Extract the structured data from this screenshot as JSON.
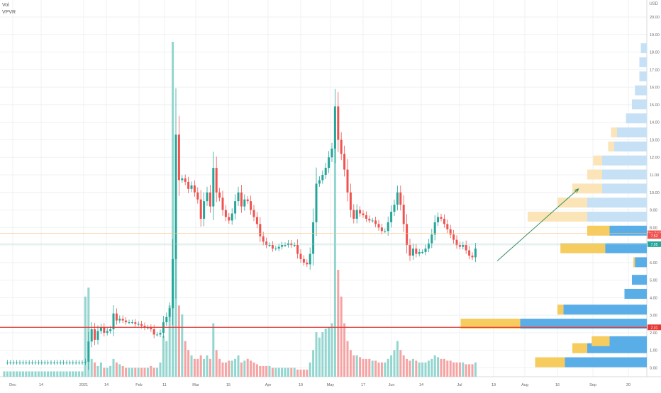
{
  "legend": {
    "line1": "Vol",
    "line2": "VPVR"
  },
  "currency": "USD",
  "chart_data": {
    "type": "candlestick",
    "ylim": [
      -0.5,
      20.9
    ],
    "y_ticks": [
      "0.00",
      "1.00",
      "2.00",
      "3.00",
      "4.00",
      "5.00",
      "6.00",
      "7.00",
      "8.00",
      "9.00",
      "10.00",
      "11.00",
      "12.00",
      "13.00",
      "14.00",
      "15.00",
      "16.00",
      "17.00",
      "18.00",
      "19.00",
      "20.00"
    ],
    "x_ticks": [
      "Dec",
      "14",
      "2021",
      "14",
      "Feb",
      "11",
      "Mar",
      "15",
      "Apr",
      "19",
      "May",
      "17",
      "Jun",
      "14",
      "Jul",
      "19",
      "Aug",
      "16",
      "Sep",
      "20"
    ],
    "price_labels": [
      {
        "text": "Pre 7.67",
        "value": 7.67,
        "color": "#ef5350"
      },
      {
        "text": "7.52",
        "value": 7.52,
        "color": "#ef5350"
      },
      {
        "text": "7.05",
        "value": 7.05,
        "color": "#26a69a"
      },
      {
        "text": "2.31",
        "value": 2.31,
        "color": "#e53935"
      }
    ],
    "horizontal_line": {
      "value": 2.31,
      "color": "#e53935"
    },
    "series": [
      {
        "name": "Price",
        "data": [
          0.3,
          0.3,
          0.3,
          0.3,
          0.3,
          0.3,
          0.3,
          0.3,
          0.3,
          0.3,
          0.3,
          0.3,
          0.3,
          0.3,
          0.3,
          0.3,
          0.3,
          0.3,
          0.3,
          0.3,
          0.3,
          0.3,
          0.3,
          0.3,
          0.3,
          0.3,
          0.35,
          1.5,
          2.2,
          1.6,
          2.1,
          2.3,
          2.0,
          2.1,
          2.2,
          3.1,
          2.7,
          2.8,
          2.7,
          2.6,
          2.6,
          2.6,
          2.5,
          2.5,
          2.4,
          2.3,
          2.3,
          2.2,
          1.9,
          1.9,
          2.0,
          2.6,
          2.9,
          3.4,
          6.2,
          13.3,
          10.7,
          10.8,
          10.6,
          10.2,
          10.4,
          10.0,
          9.6,
          8.5,
          9.5,
          10.0,
          9.2,
          11.4,
          10.0,
          9.7,
          9.0,
          8.6,
          8.4,
          8.8,
          9.5,
          10.0,
          9.2,
          9.6,
          9.5,
          9.0,
          8.6,
          8.2,
          7.5,
          7.2,
          7.0,
          7.0,
          6.8,
          6.8,
          6.9,
          7.0,
          7.0,
          7.1,
          7.0,
          7.0,
          6.5,
          6.2,
          6.0,
          5.9,
          6.5,
          8.3,
          10.5,
          10.7,
          11.0,
          11.4,
          12.0,
          12.5,
          14.9,
          13.0,
          12.2,
          11.3,
          10.0,
          9.0,
          8.5,
          9.0,
          8.8,
          8.7,
          8.5,
          8.4,
          8.4,
          8.2,
          8.0,
          7.8,
          7.8,
          8.3,
          8.9,
          9.3,
          10.0,
          9.3,
          8.2,
          7.0,
          6.4,
          6.8,
          6.5,
          6.6,
          6.6,
          6.8,
          7.1,
          7.6,
          8.3,
          8.6,
          8.5,
          8.2,
          7.9,
          7.6,
          7.3,
          7.0,
          6.9,
          7.0,
          6.7,
          6.4,
          6.3,
          6.8
        ]
      },
      {
        "name": "Volume",
        "data": [
          0.3,
          0.3,
          0.3,
          0.3,
          0.3,
          0.3,
          0.3,
          0.3,
          0.3,
          0.3,
          0.3,
          0.3,
          0.3,
          0.3,
          0.3,
          0.3,
          0.3,
          0.3,
          0.3,
          0.3,
          0.3,
          0.3,
          0.3,
          0.3,
          0.3,
          0.3,
          4.5,
          5.0,
          1.0,
          0.8,
          0.6,
          0.8,
          0.5,
          0.5,
          0.6,
          1.0,
          0.8,
          0.7,
          0.6,
          0.5,
          0.5,
          0.5,
          0.5,
          0.5,
          0.5,
          0.5,
          0.5,
          0.6,
          0.5,
          0.5,
          0.8,
          2.3,
          2.0,
          4.0,
          18.8,
          10.0,
          4.0,
          3.5,
          2.0,
          1.5,
          1.2,
          1.0,
          1.0,
          1.2,
          1.0,
          1.2,
          1.0,
          3.0,
          1.5,
          1.0,
          0.8,
          0.8,
          0.9,
          0.9,
          1.0,
          1.2,
          0.8,
          0.9,
          1.0,
          0.9,
          0.8,
          0.7,
          0.6,
          0.6,
          0.6,
          0.6,
          0.5,
          0.5,
          0.5,
          0.5,
          0.5,
          0.5,
          0.5,
          0.5,
          0.4,
          0.4,
          0.4,
          0.4,
          0.8,
          1.5,
          2.5,
          2.2,
          2.5,
          2.7,
          2.8,
          3.0,
          14.9,
          6.0,
          4.5,
          3.0,
          2.0,
          1.5,
          1.2,
          1.2,
          1.1,
          1.0,
          1.0,
          1.0,
          0.9,
          0.9,
          0.8,
          0.8,
          0.8,
          1.0,
          1.2,
          1.5,
          2.0,
          1.5,
          1.2,
          1.0,
          0.9,
          1.0,
          0.9,
          0.8,
          0.8,
          0.8,
          0.9,
          1.0,
          1.2,
          1.1,
          1.0,
          1.0,
          0.9,
          0.9,
          0.8,
          0.8,
          0.8,
          0.8,
          0.7,
          0.7,
          0.7,
          0.8
        ]
      }
    ],
    "vpvr": [
      {
        "price": 0.3,
        "up": 0.55,
        "down": 0.2
      },
      {
        "price": 1.1,
        "up": 0.4,
        "down": 0.1
      },
      {
        "price": 1.5,
        "up": 0.25,
        "down": 0.12
      },
      {
        "price": 2.5,
        "up": 0.85,
        "down": 0.4
      },
      {
        "price": 3.3,
        "up": 0.56,
        "down": 0.04
      },
      {
        "price": 4.2,
        "up": 0.15,
        "down": 0.0
      },
      {
        "price": 5.0,
        "up": 0.1,
        "down": 0.0
      },
      {
        "price": 6.0,
        "up": 0.08,
        "down": 0.01
      },
      {
        "price": 6.8,
        "up": 0.28,
        "down": 0.3
      },
      {
        "price": 7.8,
        "up": 0.25,
        "down": 0.15
      },
      {
        "price": 8.6,
        "up": 0.4,
        "down": 0.4
      },
      {
        "price": 9.4,
        "up": 0.4,
        "down": 0.2
      },
      {
        "price": 10.2,
        "up": 0.3,
        "down": 0.2
      },
      {
        "price": 11.0,
        "up": 0.3,
        "down": 0.1
      },
      {
        "price": 11.8,
        "up": 0.3,
        "down": 0.06
      },
      {
        "price": 12.6,
        "up": 0.22,
        "down": 0.04
      },
      {
        "price": 13.4,
        "up": 0.2,
        "down": 0.04
      },
      {
        "price": 14.2,
        "up": 0.14,
        "down": 0.0
      },
      {
        "price": 15.0,
        "up": 0.1,
        "down": 0.0
      },
      {
        "price": 15.8,
        "up": 0.08,
        "down": 0.0
      },
      {
        "price": 16.6,
        "up": 0.05,
        "down": 0.0
      },
      {
        "price": 17.4,
        "up": 0.05,
        "down": 0.0
      },
      {
        "price": 18.2,
        "up": 0.04,
        "down": 0.0
      }
    ],
    "colors": {
      "up": "#26a69a",
      "down": "#ef5350",
      "vol_up": "#93d5cf",
      "vol_down": "#f5a3a3",
      "vpvr_up": "#5aaee8",
      "vpvr_down": "#f7cc5e",
      "vpvr_up_light": "#c6e1f6",
      "vpvr_down_light": "#fbe4b8",
      "grid": "#eef0f3",
      "axis_text": "#666666",
      "arrow": "#2e8b57"
    },
    "arrow": {
      "from_date_index": 158,
      "from_value": 6.1,
      "to_date_index": 184,
      "to_value": 10.2
    }
  }
}
